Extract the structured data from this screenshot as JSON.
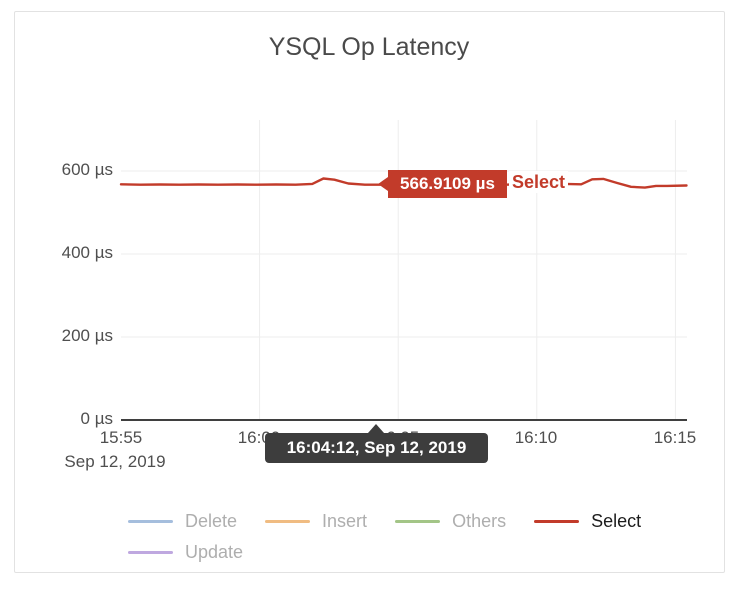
{
  "chart_data": {
    "type": "line",
    "title": "YSQL Op Latency",
    "x_ticks": [
      "15:55",
      "16:00",
      "16:05",
      "16:10",
      "16:15"
    ],
    "x_date_label": "Sep 12, 2019",
    "y_ticks": [
      "0 µs",
      "200 µs",
      "400 µs",
      "600 µs"
    ],
    "y_unit": "µs",
    "ylim": [
      0,
      723
    ],
    "grid": {
      "minute_ticks": [
        5,
        10,
        15,
        20
      ],
      "value_lines": [
        200,
        400,
        600
      ]
    },
    "legend_position": "bottom",
    "series": [
      {
        "name": "Delete",
        "color": "#a5bedd",
        "visible": false
      },
      {
        "name": "Insert",
        "color": "#f0bc82",
        "visible": false
      },
      {
        "name": "Others",
        "color": "#a3c587",
        "visible": false
      },
      {
        "name": "Select",
        "color": "#c23b2a",
        "visible": true,
        "points": [
          [
            0,
            568
          ],
          [
            0.7,
            567
          ],
          [
            1.4,
            567.5
          ],
          [
            2.1,
            567
          ],
          [
            2.8,
            567.5
          ],
          [
            3.5,
            567
          ],
          [
            4.2,
            567.5
          ],
          [
            4.9,
            567
          ],
          [
            5.6,
            567.5
          ],
          [
            6.3,
            567
          ],
          [
            6.9,
            569
          ],
          [
            7.3,
            582
          ],
          [
            7.7,
            579
          ],
          [
            8.2,
            570
          ],
          [
            8.8,
            567
          ],
          [
            9.2,
            566.9109
          ],
          [
            10,
            567
          ],
          [
            11,
            567.5
          ],
          [
            12,
            566
          ],
          [
            13,
            565.5
          ],
          [
            13.9,
            567
          ],
          [
            14.6,
            569
          ],
          [
            15.3,
            566
          ],
          [
            16,
            569
          ],
          [
            16.6,
            568
          ],
          [
            17,
            580
          ],
          [
            17.4,
            581
          ],
          [
            17.9,
            571
          ],
          [
            18.4,
            562
          ],
          [
            18.9,
            560
          ],
          [
            19.3,
            564
          ],
          [
            19.7,
            564
          ],
          [
            20.4,
            565
          ]
        ]
      },
      {
        "name": "Update",
        "color": "#bfa8e0",
        "visible": false
      }
    ],
    "hover_tooltip": {
      "value": "566.9109 µs",
      "series": "Select",
      "time": "16:04:12, Sep 12, 2019"
    }
  },
  "legend": {
    "items": [
      {
        "label": "Delete",
        "color": "#a5bedd",
        "label_color": "#aeaeae"
      },
      {
        "label": "Insert",
        "color": "#f0bc82",
        "label_color": "#aeaeae"
      },
      {
        "label": "Others",
        "color": "#a3c587",
        "label_color": "#aeaeae"
      },
      {
        "label": "Select",
        "color": "#c23b2a",
        "label_color": "#1c1c1c"
      },
      {
        "label": "Update",
        "color": "#bfa8e0",
        "label_color": "#aeaeae"
      }
    ]
  },
  "colors": {
    "accent_red": "#c23b2a",
    "axis_line": "#3f3f3f",
    "gridline": "#ededed",
    "tooltip_dark_bg": "#3d3d3d",
    "card_border": "#e2e2e2"
  }
}
